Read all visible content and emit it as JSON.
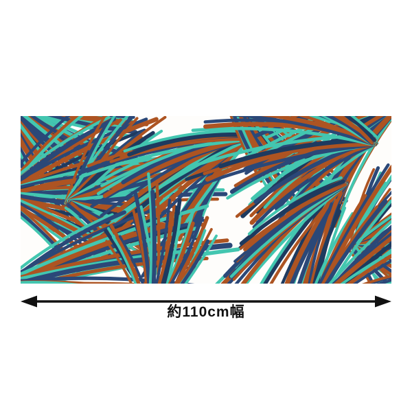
{
  "page": {
    "background_color": "#ffffff"
  },
  "fabric_swatch": {
    "alt": "Tropical palm frond print fabric swatch",
    "pattern_colors": {
      "rust": "#ad5422",
      "navy": "#2b4878",
      "dark_navy": "#1e3a5f",
      "teal": "#43c6b0",
      "background": "#fefdfb"
    }
  },
  "measurement": {
    "label": "約110cm幅",
    "arrow_color": "#111111"
  }
}
